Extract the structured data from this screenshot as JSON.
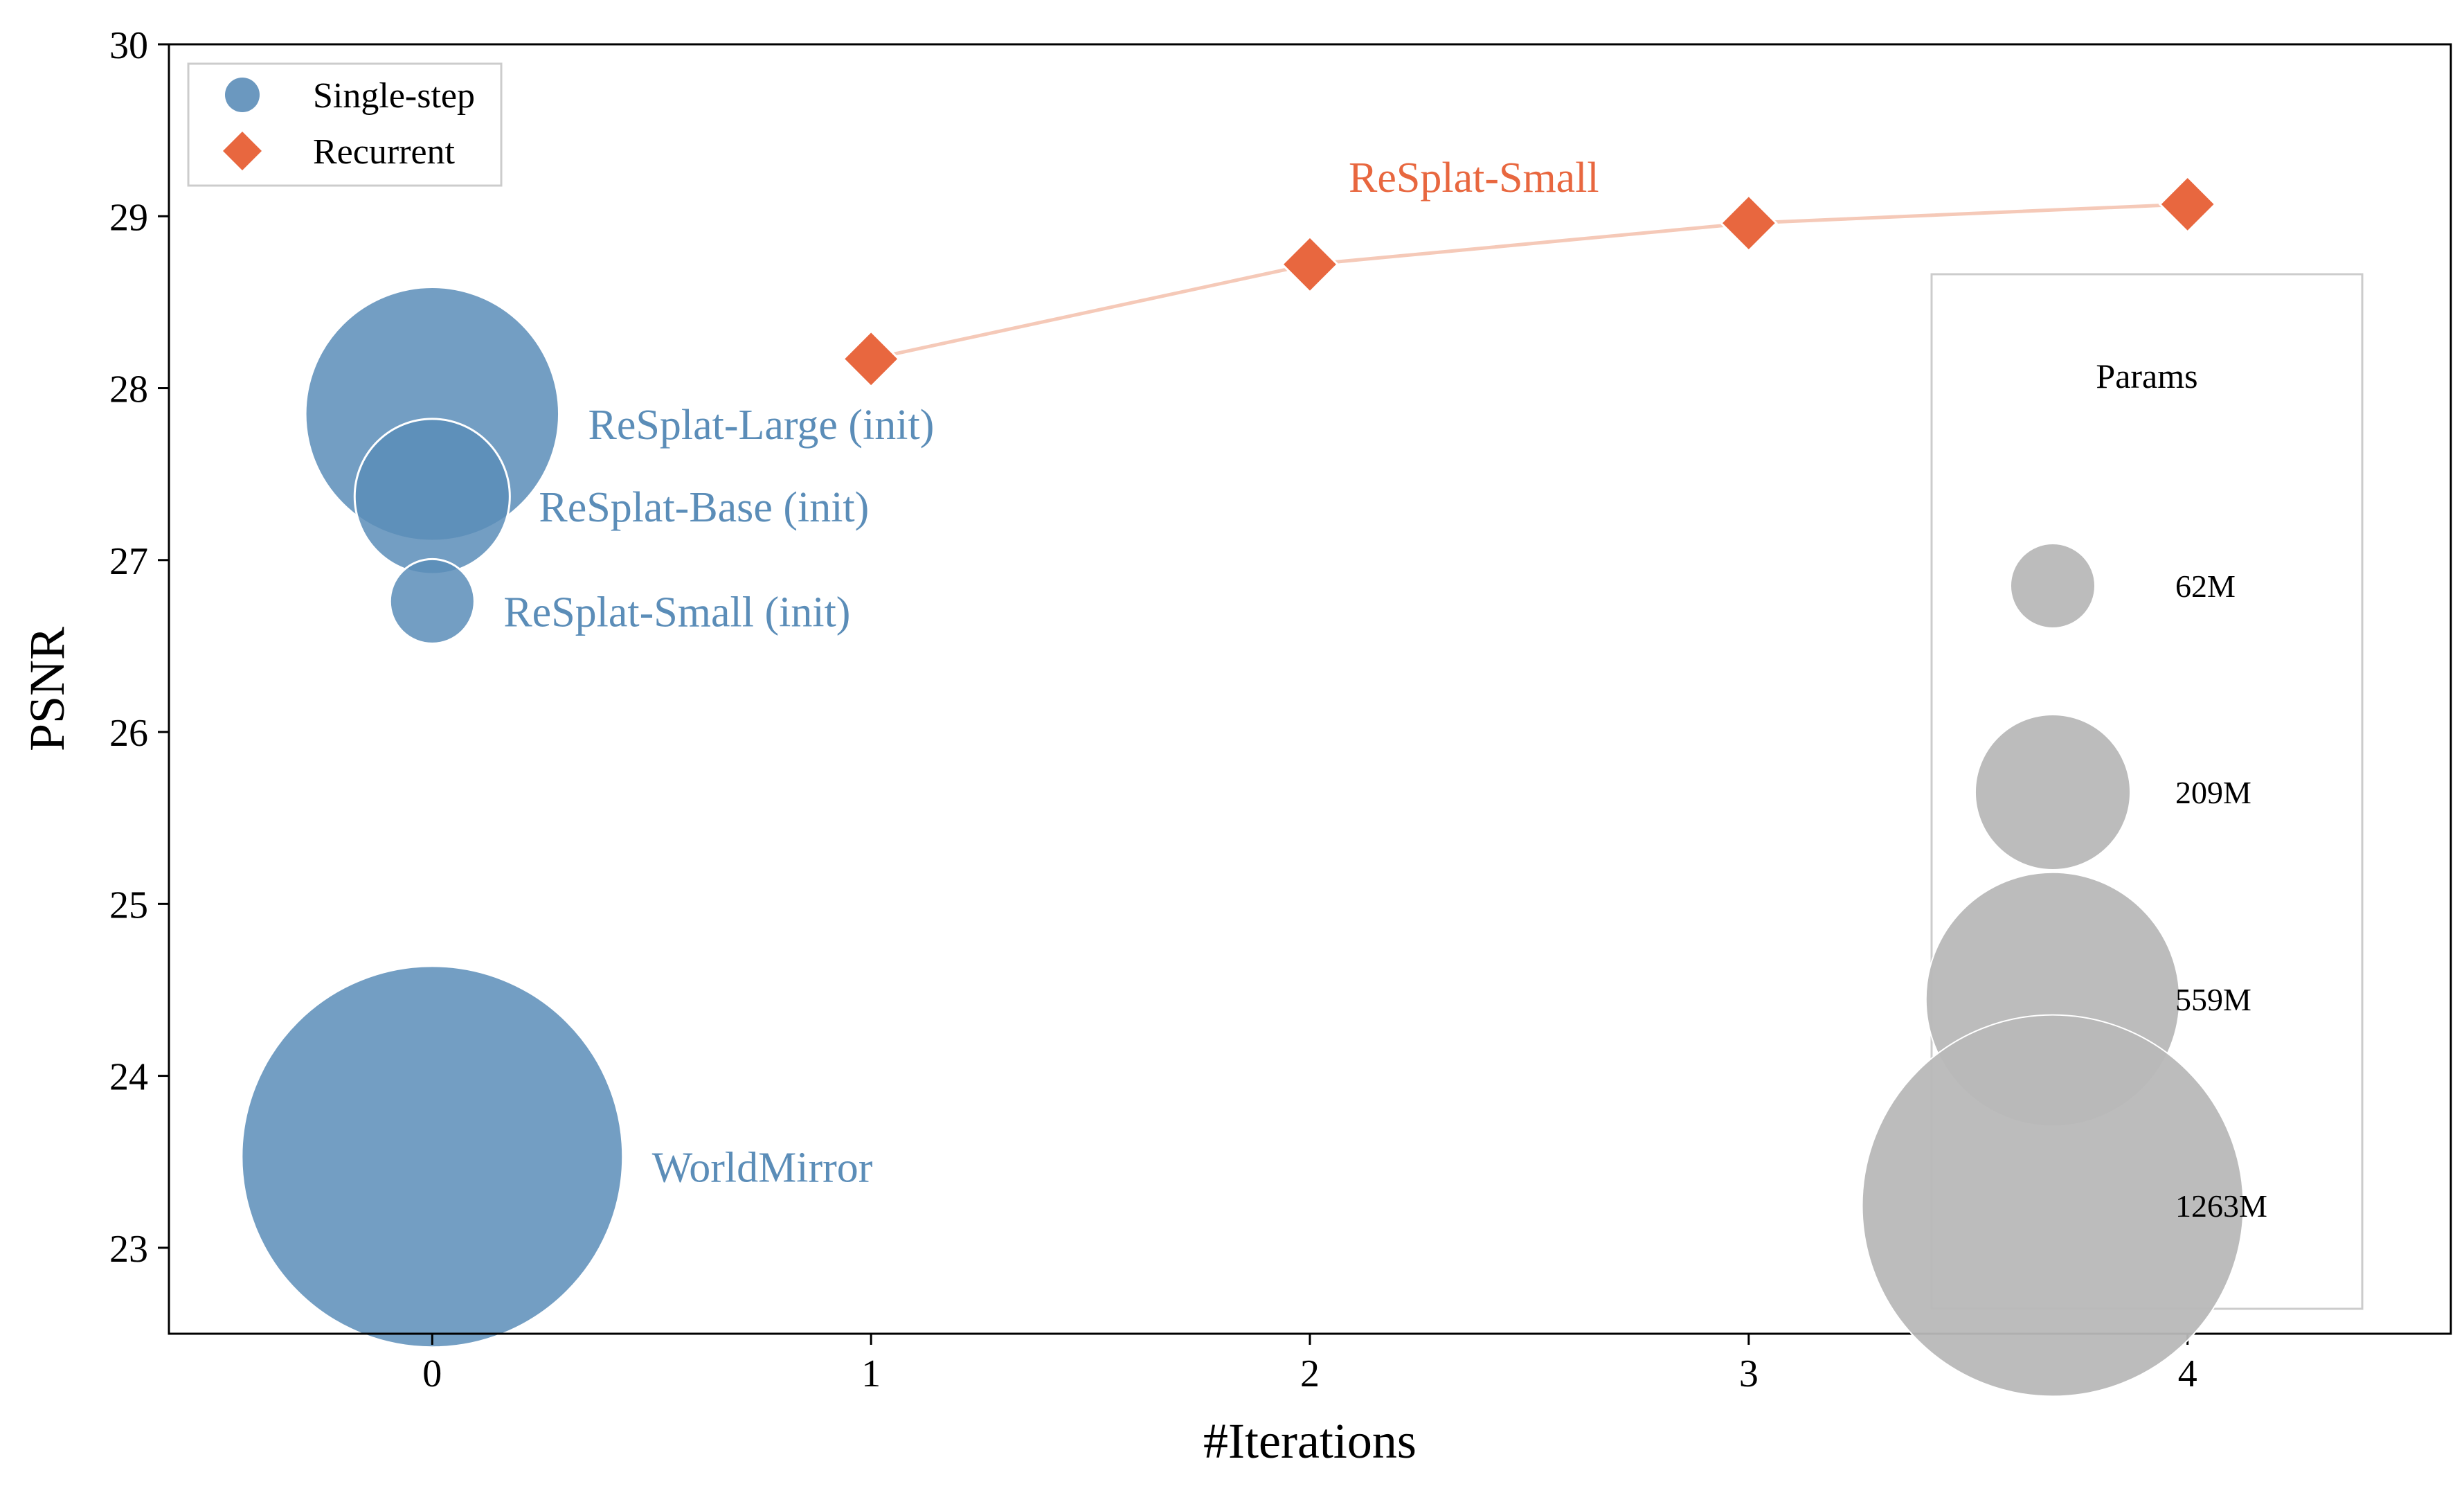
{
  "chart_data": {
    "type": "scatter",
    "title": "",
    "xlabel": "#Iterations",
    "ylabel": "PSNR",
    "xlim": [
      -0.6,
      4.6
    ],
    "ylim": [
      22.5,
      30
    ],
    "xticks": [
      "0",
      "1",
      "2",
      "3",
      "4"
    ],
    "yticks": [
      "23",
      "24",
      "25",
      "26",
      "27",
      "28",
      "29",
      "30"
    ],
    "grid": false,
    "legend": {
      "placement": "top-left",
      "entries": [
        {
          "label": "Single-step",
          "marker": "circle",
          "color": "#5b8db8"
        },
        {
          "label": "Recurrent",
          "marker": "diamond",
          "color": "#e8673f"
        }
      ]
    },
    "series": [
      {
        "name": "Single-step",
        "color": "#5b8db8",
        "points": [
          {
            "label": "ReSplat-Large (init)",
            "x": 0,
            "y": 27.85,
            "params_m": 559
          },
          {
            "label": "ReSplat-Base (init)",
            "x": 0,
            "y": 27.37,
            "params_m": 209
          },
          {
            "label": "ReSplat-Small (init)",
            "x": 0,
            "y": 26.76,
            "params_m": 62
          },
          {
            "label": "WorldMirror",
            "x": 0,
            "y": 23.53,
            "params_m": 1263
          }
        ]
      },
      {
        "name": "Recurrent",
        "color": "#e8673f",
        "line_color": "#f5c9b8",
        "label": "ReSplat-Small",
        "x": [
          1,
          2,
          3,
          4
        ],
        "y": [
          28.17,
          28.72,
          28.96,
          29.07
        ]
      }
    ],
    "size_legend": {
      "title": "Params",
      "placement": "lower-right",
      "color": "#b8b8b8",
      "entries": [
        {
          "label": "62M",
          "params_m": 62
        },
        {
          "label": "209M",
          "params_m": 209
        },
        {
          "label": "559M",
          "params_m": 559
        },
        {
          "label": "1263M",
          "params_m": 1263
        }
      ]
    }
  }
}
